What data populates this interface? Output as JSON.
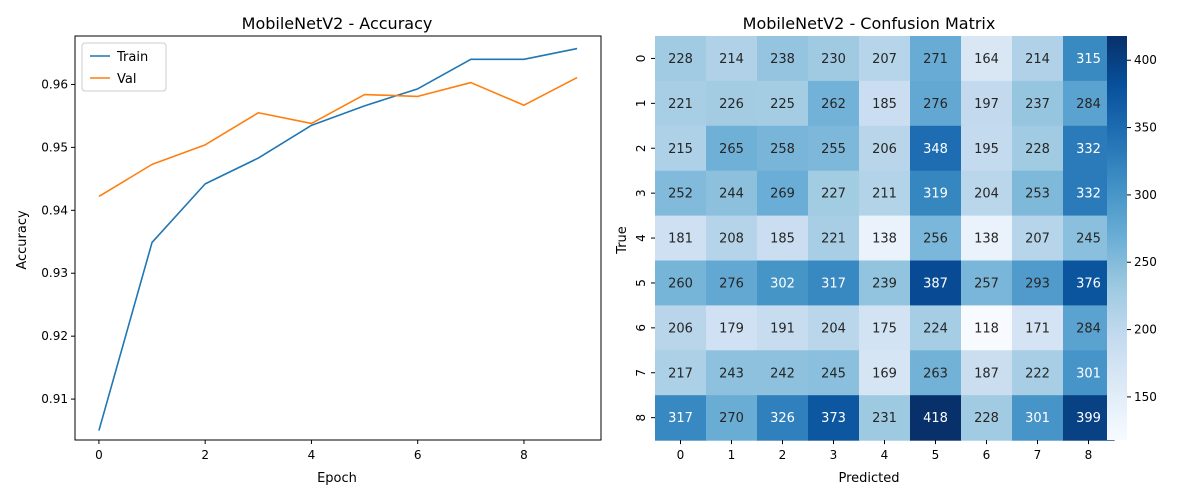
{
  "chart_data": [
    {
      "type": "line",
      "title": "MobileNetV2 - Accuracy",
      "xlabel": "Epoch",
      "ylabel": "Accuracy",
      "xlim": [
        -0.45,
        9.45
      ],
      "ylim": [
        0.9035,
        0.9677
      ],
      "xticks": [
        0,
        2,
        4,
        6,
        8
      ],
      "yticks": [
        0.91,
        0.92,
        0.93,
        0.94,
        0.95,
        0.96
      ],
      "ytick_labels": [
        "0.91",
        "0.92",
        "0.93",
        "0.94",
        "0.95",
        "0.96"
      ],
      "legend_position": "upper left",
      "grid": false,
      "x": [
        0,
        1,
        2,
        3,
        4,
        5,
        6,
        7,
        8,
        9
      ],
      "series": [
        {
          "name": "Train",
          "color": "#1f77b4",
          "values": [
            0.905,
            0.9349,
            0.9442,
            0.9483,
            0.9535,
            0.9566,
            0.9593,
            0.964,
            0.964,
            0.9657
          ]
        },
        {
          "name": "Val",
          "color": "#ff7f0e",
          "values": [
            0.9422,
            0.9473,
            0.9504,
            0.9555,
            0.9538,
            0.9584,
            0.9581,
            0.9603,
            0.9567,
            0.9611
          ]
        }
      ]
    },
    {
      "type": "heatmap",
      "title": "MobileNetV2 - Confusion Matrix",
      "xlabel": "Predicted",
      "ylabel": "True",
      "x_categories": [
        "0",
        "1",
        "2",
        "3",
        "4",
        "5",
        "6",
        "7",
        "8"
      ],
      "y_categories": [
        "0",
        "1",
        "2",
        "3",
        "4",
        "5",
        "6",
        "7",
        "8"
      ],
      "colormap": "Blues",
      "vmin": 118,
      "vmax": 418,
      "colorbar_ticks": [
        150,
        200,
        250,
        300,
        350,
        400
      ],
      "values": [
        [
          228,
          214,
          238,
          230,
          207,
          271,
          164,
          214,
          315
        ],
        [
          221,
          226,
          225,
          262,
          185,
          276,
          197,
          237,
          284
        ],
        [
          215,
          265,
          258,
          255,
          206,
          348,
          195,
          228,
          332
        ],
        [
          252,
          244,
          269,
          227,
          211,
          319,
          204,
          253,
          332
        ],
        [
          181,
          208,
          185,
          221,
          138,
          256,
          138,
          207,
          245
        ],
        [
          260,
          276,
          302,
          317,
          239,
          387,
          257,
          293,
          376
        ],
        [
          206,
          179,
          191,
          204,
          175,
          224,
          118,
          171,
          284
        ],
        [
          217,
          243,
          242,
          245,
          169,
          263,
          187,
          222,
          301
        ],
        [
          317,
          270,
          326,
          373,
          231,
          418,
          228,
          301,
          399
        ]
      ]
    }
  ]
}
